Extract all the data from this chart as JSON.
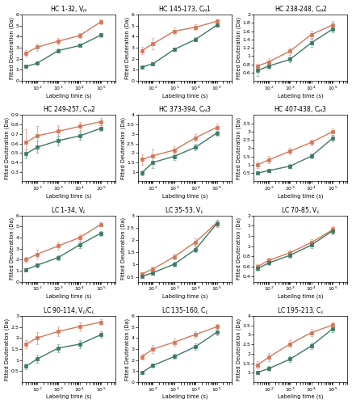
{
  "subplots": [
    {
      "title": "HC 1-32, V$_H$",
      "orange": [
        2.5,
        3.05,
        3.6,
        4.1,
        5.35
      ],
      "orange_err": [
        0.3,
        0.35,
        0.3,
        0.25,
        0.2
      ],
      "green": [
        1.3,
        1.6,
        2.75,
        3.2,
        4.15
      ],
      "green_err": [
        0.08,
        0.12,
        0.18,
        0.15,
        0.18
      ],
      "ylim": [
        0,
        6
      ],
      "yticks": [
        0,
        1,
        2,
        3,
        4,
        5,
        6
      ]
    },
    {
      "title": "HC 145-173, C$_H$1",
      "orange": [
        2.75,
        3.35,
        4.5,
        4.85,
        5.4
      ],
      "orange_err": [
        0.3,
        0.5,
        0.3,
        0.25,
        0.2
      ],
      "green": [
        1.25,
        1.55,
        2.85,
        3.75,
        5.05
      ],
      "green_err": [
        0.08,
        0.12,
        0.14,
        0.18,
        0.14
      ],
      "ylim": [
        0,
        6
      ],
      "yticks": [
        0,
        1,
        2,
        3,
        4,
        5,
        6
      ]
    },
    {
      "title": "HC 238-248, C$_H$2",
      "orange": [
        0.76,
        0.86,
        1.12,
        1.52,
        1.75
      ],
      "orange_err": [
        0.06,
        0.09,
        0.09,
        0.09,
        0.09
      ],
      "green": [
        0.65,
        0.76,
        0.92,
        1.32,
        1.65
      ],
      "green_err": [
        0.13,
        0.07,
        0.07,
        0.09,
        0.07
      ],
      "ylim": [
        0.4,
        2.0
      ],
      "yticks": [
        0.6,
        0.8,
        1.0,
        1.2,
        1.4,
        1.6,
        1.8,
        2.0
      ]
    },
    {
      "title": "HC 249-257, C$_H$2",
      "orange": [
        0.61,
        0.68,
        0.73,
        0.78,
        0.83
      ],
      "orange_err": [
        0.14,
        0.1,
        0.06,
        0.05,
        0.04
      ],
      "green": [
        0.49,
        0.56,
        0.63,
        0.68,
        0.76
      ],
      "green_err": [
        0.05,
        0.06,
        0.05,
        0.04,
        0.03
      ],
      "ylim": [
        0.2,
        0.9
      ],
      "yticks": [
        0.3,
        0.4,
        0.5,
        0.6,
        0.7,
        0.8,
        0.9
      ]
    },
    {
      "title": "HC 373-394, C$_H$3",
      "orange": [
        1.65,
        1.85,
        2.15,
        2.8,
        3.35
      ],
      "orange_err": [
        0.28,
        0.38,
        0.22,
        0.18,
        0.18
      ],
      "green": [
        0.95,
        1.5,
        1.82,
        2.3,
        3.05
      ],
      "green_err": [
        0.14,
        0.28,
        0.18,
        0.18,
        0.13
      ],
      "ylim": [
        0.5,
        4.0
      ],
      "yticks": [
        1.0,
        1.5,
        2.0,
        2.5,
        3.0,
        3.5,
        4.0
      ]
    },
    {
      "title": "HC 407-438, C$_H$3",
      "orange": [
        1.0,
        1.3,
        1.82,
        2.35,
        3.0
      ],
      "orange_err": [
        0.18,
        0.22,
        0.18,
        0.18,
        0.18
      ],
      "green": [
        0.5,
        0.65,
        0.92,
        1.52,
        2.6
      ],
      "green_err": [
        0.09,
        0.09,
        0.11,
        0.14,
        0.18
      ],
      "ylim": [
        0.0,
        4.0
      ],
      "yticks": [
        0.5,
        1.0,
        1.5,
        2.0,
        2.5,
        3.0,
        3.5
      ]
    },
    {
      "title": "LC 1-34, V$_L$",
      "orange": [
        2.0,
        2.5,
        3.25,
        4.0,
        5.2
      ],
      "orange_err": [
        0.28,
        0.38,
        0.32,
        0.28,
        0.18
      ],
      "green": [
        1.1,
        1.5,
        2.2,
        3.35,
        4.4
      ],
      "green_err": [
        0.14,
        0.18,
        0.22,
        0.28,
        0.22
      ],
      "ylim": [
        0,
        6
      ],
      "yticks": [
        0,
        1,
        2,
        3,
        4,
        5,
        6
      ]
    },
    {
      "title": "LC 35-53, V$_L$",
      "orange": [
        0.62,
        0.82,
        1.32,
        1.92,
        2.7
      ],
      "orange_err": [
        0.07,
        0.09,
        0.11,
        0.14,
        0.14
      ],
      "green": [
        0.52,
        0.67,
        1.02,
        1.62,
        2.67
      ],
      "green_err": [
        0.05,
        0.07,
        0.09,
        0.11,
        0.14
      ],
      "ylim": [
        0.3,
        3.0
      ],
      "yticks": [
        0.5,
        1.0,
        1.5,
        2.0,
        2.5,
        3.0
      ]
    },
    {
      "title": "LC 70-85, V$_L$",
      "orange": [
        0.6,
        0.72,
        0.87,
        1.07,
        1.32
      ],
      "orange_err": [
        0.04,
        0.05,
        0.06,
        0.07,
        0.07
      ],
      "green": [
        0.56,
        0.67,
        0.82,
        1.02,
        1.3
      ],
      "green_err": [
        0.04,
        0.04,
        0.05,
        0.06,
        0.07
      ],
      "ylim": [
        0.3,
        1.6
      ],
      "yticks": [
        0.4,
        0.6,
        0.8,
        1.0,
        1.2,
        1.4,
        1.6
      ]
    },
    {
      "title": "LC 90-114, V$_L$/C$_L$",
      "orange": [
        1.72,
        2.0,
        2.3,
        2.52,
        2.72
      ],
      "orange_err": [
        0.18,
        0.28,
        0.22,
        0.18,
        0.14
      ],
      "green": [
        0.72,
        1.05,
        1.55,
        1.72,
        2.15
      ],
      "green_err": [
        0.14,
        0.18,
        0.18,
        0.18,
        0.14
      ],
      "ylim": [
        0.0,
        3.0
      ],
      "yticks": [
        0.5,
        1.0,
        1.5,
        2.0,
        2.5,
        3.0
      ]
    },
    {
      "title": "LC 135-160, C$_L$",
      "orange": [
        2.3,
        3.0,
        3.62,
        4.32,
        5.02
      ],
      "orange_err": [
        0.28,
        0.38,
        0.32,
        0.28,
        0.22
      ],
      "green": [
        0.87,
        1.52,
        2.32,
        3.22,
        4.52
      ],
      "green_err": [
        0.09,
        0.18,
        0.22,
        0.28,
        0.28
      ],
      "ylim": [
        0,
        6
      ],
      "yticks": [
        0,
        1,
        2,
        3,
        4,
        5,
        6
      ]
    },
    {
      "title": "LC 195-213, C$_L$",
      "orange": [
        1.42,
        1.82,
        2.52,
        3.12,
        3.52
      ],
      "orange_err": [
        0.18,
        0.22,
        0.18,
        0.18,
        0.14
      ],
      "green": [
        1.02,
        1.22,
        1.72,
        2.42,
        3.32
      ],
      "green_err": [
        0.09,
        0.14,
        0.14,
        0.18,
        0.18
      ],
      "ylim": [
        0.5,
        4.0
      ],
      "yticks": [
        1.0,
        1.5,
        2.0,
        2.5,
        3.0,
        3.5,
        4.0
      ]
    }
  ],
  "x_values": [
    30,
    100,
    1000,
    10000,
    100000
  ],
  "orange_color": "#D4775A",
  "orange_err_color": "#E8A898",
  "green_color": "#3D7A62",
  "green_err_color": "#7AB89A",
  "xlabel": "Labeling time (s)",
  "ylabel": "Fitted Deuteration (Da)",
  "marker": "s",
  "markersize": 2.5,
  "linewidth": 1.0,
  "capsize": 1.5,
  "elinewidth": 0.7,
  "title_fontsize": 5.5,
  "label_fontsize": 4.8,
  "tick_fontsize": 4.5,
  "figure_bg": "#ffffff"
}
